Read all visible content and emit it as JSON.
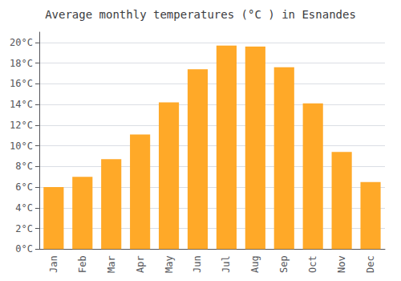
{
  "chart_data": {
    "type": "bar",
    "title": "Average monthly temperatures (°C ) in Esnandes",
    "categories": [
      "Jan",
      "Feb",
      "Mar",
      "Apr",
      "May",
      "Jun",
      "Jul",
      "Aug",
      "Sep",
      "Oct",
      "Nov",
      "Dec"
    ],
    "values": [
      6.0,
      7.0,
      8.7,
      11.1,
      14.2,
      17.4,
      19.7,
      19.6,
      17.6,
      14.1,
      9.4,
      6.5
    ],
    "color": "#FFA928",
    "ylim": [
      0,
      21
    ],
    "yticks": [
      {
        "value": 0,
        "label": "0°C"
      },
      {
        "value": 2,
        "label": "2°C"
      },
      {
        "value": 4,
        "label": "4°C"
      },
      {
        "value": 6,
        "label": "6°C"
      },
      {
        "value": 8,
        "label": "8°C"
      },
      {
        "value": 10,
        "label": "10°C"
      },
      {
        "value": 12,
        "label": "12°C"
      },
      {
        "value": 14,
        "label": "14°C"
      },
      {
        "value": 16,
        "label": "16°C"
      },
      {
        "value": 18,
        "label": "18°C"
      },
      {
        "value": 20,
        "label": "20°C"
      }
    ],
    "grid": true
  }
}
